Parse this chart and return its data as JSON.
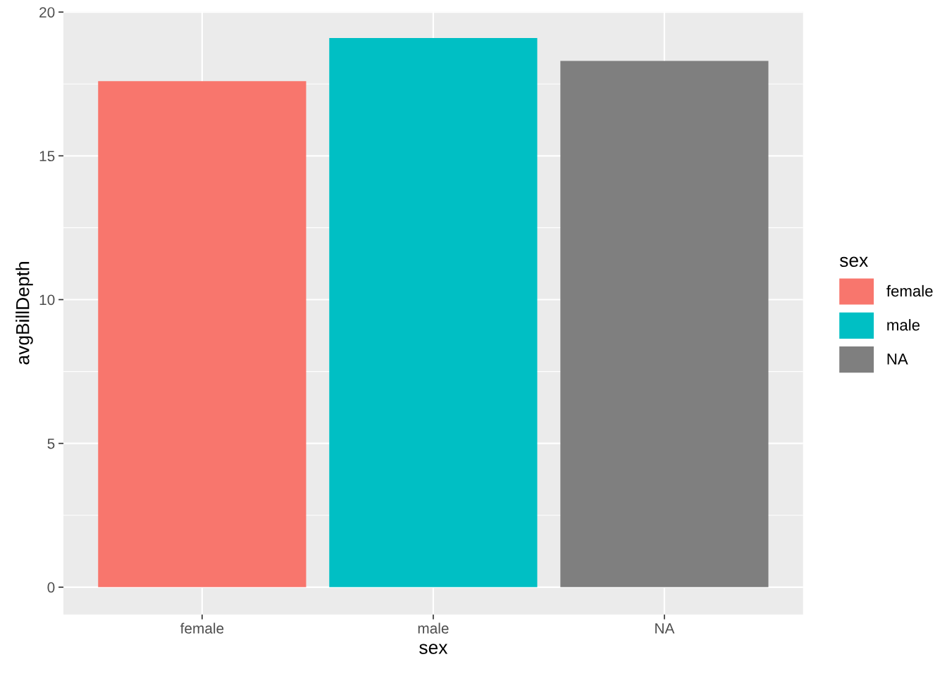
{
  "chart_data": {
    "type": "bar",
    "xlabel": "sex",
    "ylabel": "avgBillDepth",
    "legend_title": "sex",
    "categories": [
      "female",
      "male",
      "NA"
    ],
    "series": [
      {
        "name": "female",
        "color": "#f8766d",
        "values": [
          17.6,
          null,
          null
        ]
      },
      {
        "name": "male",
        "color": "#00bfc4",
        "values": [
          null,
          19.1,
          null
        ]
      },
      {
        "name": "NA",
        "color": "#7f7f7f",
        "values": [
          null,
          null,
          18.3
        ]
      }
    ],
    "ylim": [
      -0.95,
      20.02
    ],
    "yticks": [
      0,
      5,
      10,
      15,
      20
    ],
    "grid": true,
    "legend": "right"
  }
}
